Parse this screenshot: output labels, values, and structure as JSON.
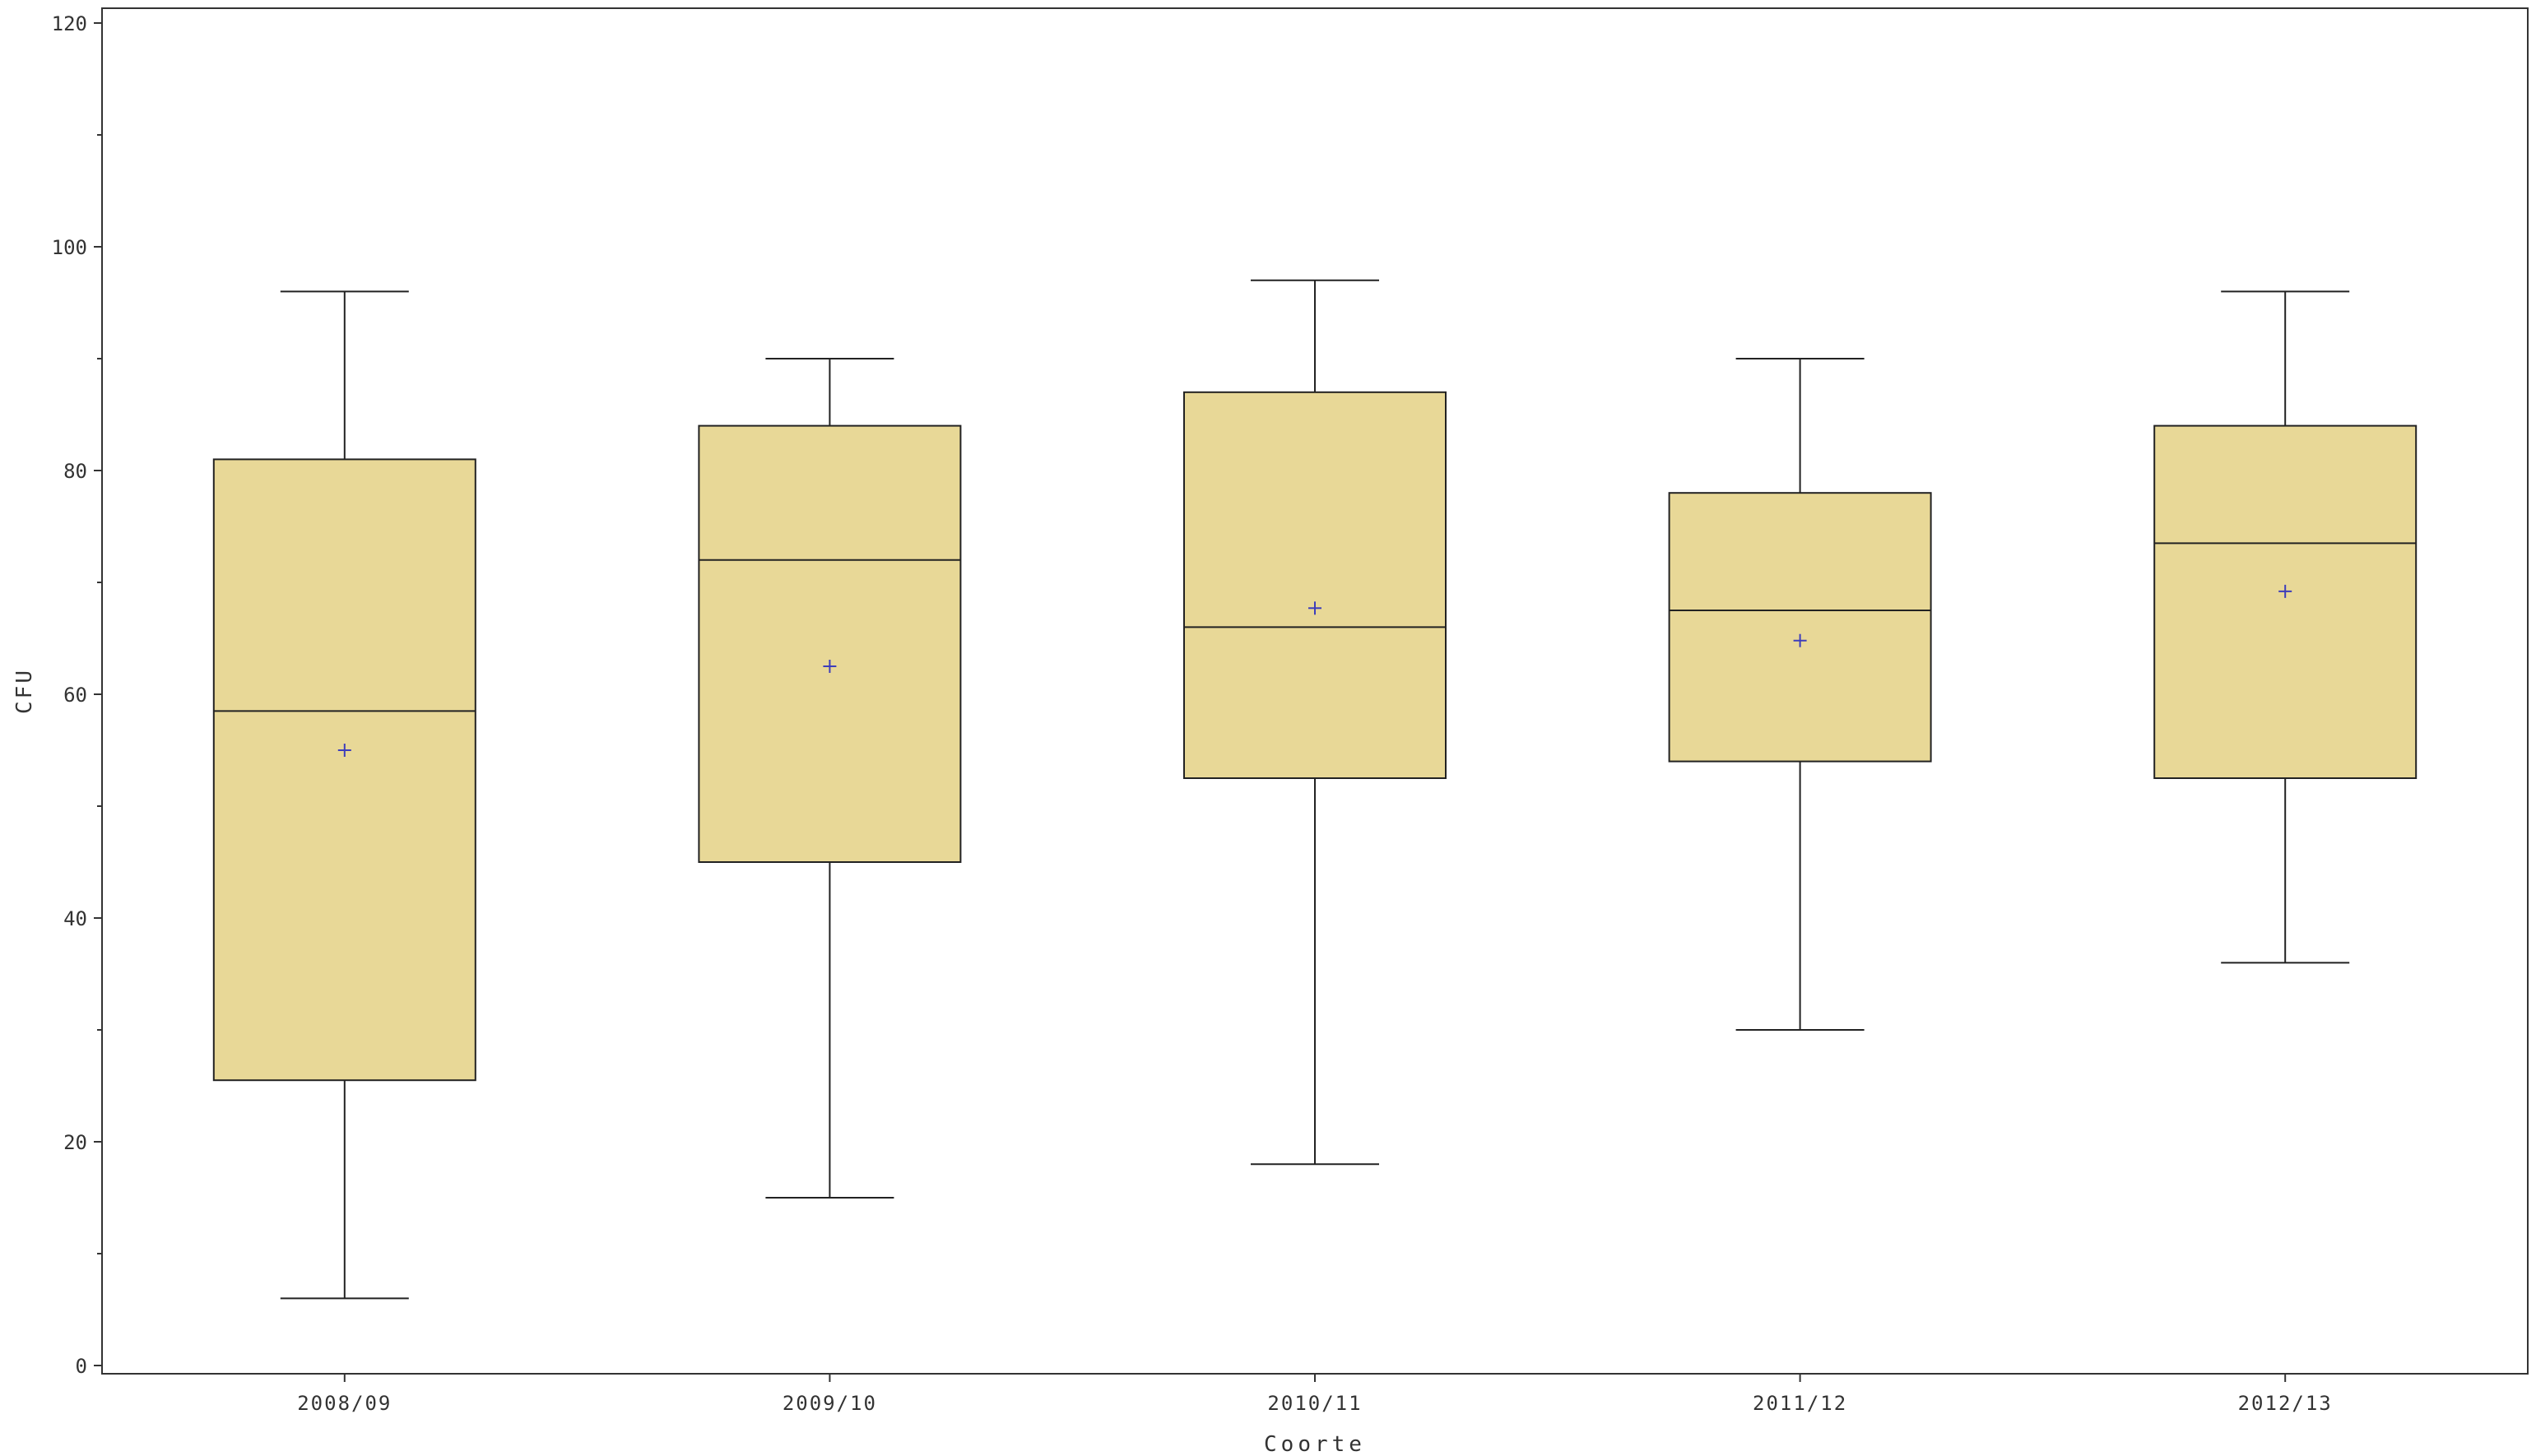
{
  "chart_data": {
    "type": "boxplot",
    "title": "",
    "xlabel": "Coorte",
    "ylabel": "CFU",
    "ylim": [
      0,
      120
    ],
    "yticks": [
      0,
      20,
      40,
      60,
      80,
      100,
      120
    ],
    "yminor_step": 10,
    "categories": [
      "2008/09",
      "2009/10",
      "2010/11",
      "2011/12",
      "2012/13"
    ],
    "boxes": [
      {
        "category": "2008/09",
        "min": 6,
        "q1": 25.5,
        "median": 58.5,
        "q3": 81,
        "max": 96,
        "mean": 55
      },
      {
        "category": "2009/10",
        "min": 15,
        "q1": 45,
        "median": 72,
        "q3": 84,
        "max": 90,
        "mean": 62.5
      },
      {
        "category": "2010/11",
        "min": 18,
        "q1": 52.5,
        "median": 66,
        "q3": 87,
        "max": 97,
        "mean": 67.7
      },
      {
        "category": "2011/12",
        "min": 30,
        "q1": 54,
        "median": 67.5,
        "q3": 78,
        "max": 90,
        "mean": 64.8
      },
      {
        "category": "2012/13",
        "min": 36,
        "q1": 52.5,
        "median": 73.5,
        "q3": 84,
        "max": 96,
        "mean": 69.2
      }
    ],
    "colors": {
      "box_fill": "#e8d897",
      "line": "#222222",
      "mean_marker": "#3d3dbb"
    },
    "mean_marker": "+"
  }
}
